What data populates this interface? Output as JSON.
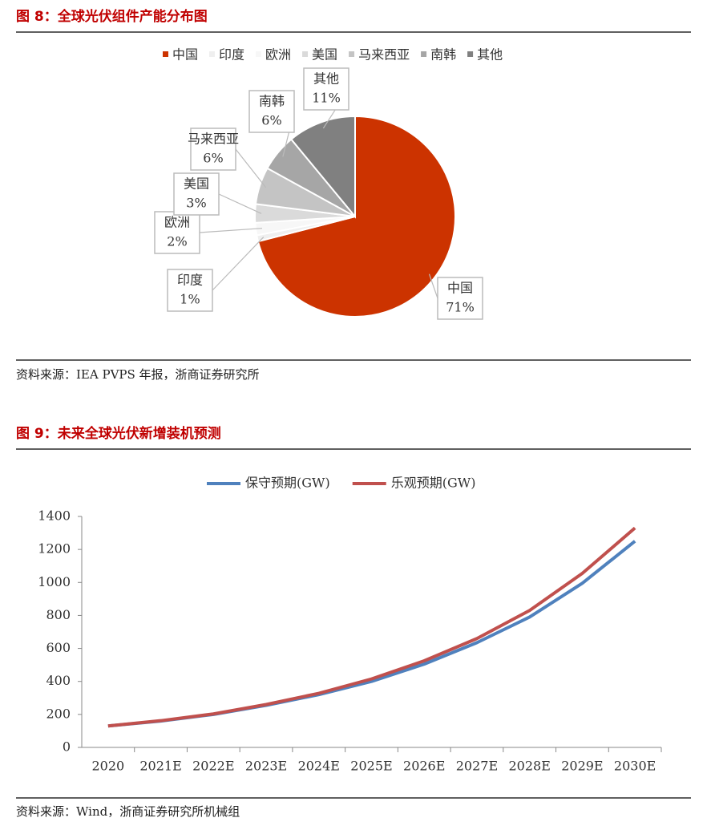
{
  "chart_data": [
    {
      "type": "pie",
      "title": "图 8：全球光伏组件产能分布图",
      "categories": [
        "中国",
        "印度",
        "欧洲",
        "美国",
        "马来西亚",
        "南韩",
        "其他"
      ],
      "values": [
        71,
        1,
        2,
        3,
        6,
        6,
        11
      ],
      "value_labels": [
        "71%",
        "1%",
        "2%",
        "3%",
        "6%",
        "6%",
        "11%"
      ],
      "colors": [
        "#cc3300",
        "#efefef",
        "#f7f7f7",
        "#dadada",
        "#c4c4c4",
        "#a6a6a6",
        "#808080"
      ],
      "source": "资料来源：IEA PVPS 年报，浙商证券研究所"
    },
    {
      "type": "line",
      "title": "图 9：未来全球光伏新增装机预测",
      "categories": [
        "2020",
        "2021E",
        "2022E",
        "2023E",
        "2024E",
        "2025E",
        "2026E",
        "2027E",
        "2028E",
        "2029E",
        "2030E"
      ],
      "series": [
        {
          "name": "保守预期(GW)",
          "color": "#4f81bd",
          "values": [
            130,
            160,
            200,
            255,
            320,
            400,
            505,
            635,
            790,
            995,
            1250
          ]
        },
        {
          "name": "乐观预期(GW)",
          "color": "#c0504d",
          "values": [
            130,
            162,
            203,
            260,
            328,
            415,
            525,
            660,
            830,
            1055,
            1330
          ]
        }
      ],
      "ylim": [
        0,
        1400
      ],
      "yticks": [
        0,
        200,
        400,
        600,
        800,
        1000,
        1200,
        1400
      ],
      "grid": false,
      "source": "资料来源：Wind，浙商证券研究所机械组"
    }
  ]
}
